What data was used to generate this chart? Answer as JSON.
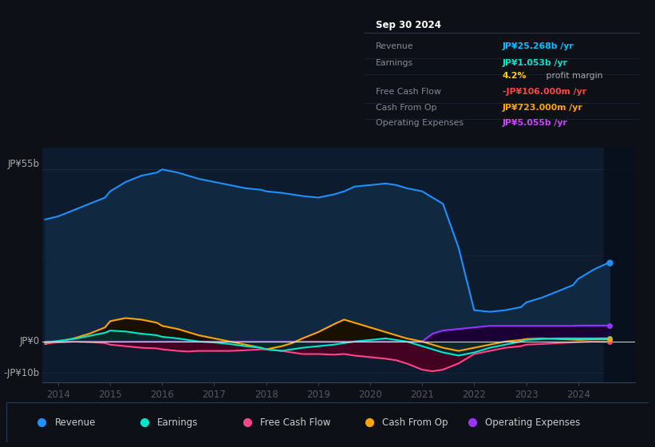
{
  "bg_color": "#0d1117",
  "chart_bg": "#0d1b2e",
  "title": "Sep 30 2024",
  "ylabel_top": "JP¥55b",
  "ylabel_zero": "JP¥0",
  "ylabel_neg": "-JP¥10b",
  "ylim": [
    -13,
    62
  ],
  "xlim": [
    2013.7,
    2025.1
  ],
  "xticks": [
    2014,
    2015,
    2016,
    2017,
    2018,
    2019,
    2020,
    2021,
    2022,
    2023,
    2024
  ],
  "info_box": {
    "title": "Sep 30 2024",
    "rows": [
      {
        "label": "Revenue",
        "value": "JP¥25.268b /yr",
        "color": "#00bfff"
      },
      {
        "label": "Earnings",
        "value": "JP¥1.053b /yr",
        "color": "#00e5cc"
      },
      {
        "label": "",
        "value": "4.2% profit margin",
        "color": "#aaaaaa"
      },
      {
        "label": "Free Cash Flow",
        "value": "-JP¥106.000m /yr",
        "color": "#ff4444"
      },
      {
        "label": "Cash From Op",
        "value": "JP¥723.000m /yr",
        "color": "#ffa500"
      },
      {
        "label": "Operating Expenses",
        "value": "JP¥5.055b /yr",
        "color": "#cc44ff"
      }
    ]
  },
  "revenue": {
    "color": "#1e90ff",
    "fill_color": "#102840",
    "x": [
      2013.75,
      2014.0,
      2014.3,
      2014.6,
      2014.9,
      2015.0,
      2015.3,
      2015.6,
      2015.9,
      2016.0,
      2016.3,
      2016.5,
      2016.7,
      2017.0,
      2017.3,
      2017.6,
      2017.9,
      2018.0,
      2018.3,
      2018.5,
      2018.7,
      2019.0,
      2019.3,
      2019.5,
      2019.7,
      2020.0,
      2020.3,
      2020.5,
      2020.7,
      2021.0,
      2021.2,
      2021.4,
      2021.7,
      2022.0,
      2022.3,
      2022.6,
      2022.9,
      2023.0,
      2023.3,
      2023.6,
      2023.9,
      2024.0,
      2024.3,
      2024.6
    ],
    "y": [
      39,
      40,
      42,
      44,
      46,
      48,
      51,
      53,
      54,
      55,
      54,
      53,
      52,
      51,
      50,
      49,
      48.5,
      48,
      47.5,
      47,
      46.5,
      46,
      47,
      48,
      49.5,
      50,
      50.5,
      50,
      49,
      48,
      46,
      44,
      30,
      10,
      9.5,
      10,
      11,
      12.5,
      14,
      16,
      18,
      20,
      23,
      25.3
    ]
  },
  "earnings": {
    "color": "#00e5cc",
    "fill_color": "#003030",
    "x": [
      2013.75,
      2014.0,
      2014.3,
      2014.6,
      2014.9,
      2015.0,
      2015.3,
      2015.6,
      2015.9,
      2016.0,
      2016.3,
      2016.5,
      2016.7,
      2017.0,
      2017.3,
      2017.6,
      2017.9,
      2018.0,
      2018.3,
      2018.5,
      2018.7,
      2019.0,
      2019.3,
      2019.5,
      2019.7,
      2020.0,
      2020.3,
      2020.5,
      2020.7,
      2021.0,
      2021.2,
      2021.4,
      2021.7,
      2022.0,
      2022.3,
      2022.6,
      2022.9,
      2023.0,
      2023.3,
      2023.6,
      2023.9,
      2024.0,
      2024.3,
      2024.6
    ],
    "y": [
      -0.3,
      0.2,
      0.8,
      1.8,
      2.8,
      3.5,
      3.2,
      2.5,
      2.0,
      1.5,
      1.0,
      0.5,
      0.0,
      -0.3,
      -0.8,
      -1.5,
      -2.0,
      -2.5,
      -3.0,
      -2.5,
      -2.0,
      -1.5,
      -1.0,
      -0.5,
      0.0,
      0.5,
      1.0,
      0.5,
      0.0,
      -1.5,
      -2.5,
      -3.5,
      -4.5,
      -3.5,
      -2.0,
      -1.0,
      0.0,
      0.5,
      0.8,
      1.0,
      1.0,
      1.0,
      1.0,
      1.05
    ]
  },
  "free_cash_flow": {
    "color": "#ff4488",
    "fill_color": "#4a0020",
    "x": [
      2013.75,
      2014.0,
      2014.3,
      2014.6,
      2014.9,
      2015.0,
      2015.3,
      2015.6,
      2015.9,
      2016.0,
      2016.3,
      2016.5,
      2016.7,
      2017.0,
      2017.3,
      2017.6,
      2017.9,
      2018.0,
      2018.3,
      2018.5,
      2018.7,
      2019.0,
      2019.3,
      2019.5,
      2019.7,
      2020.0,
      2020.3,
      2020.5,
      2020.7,
      2021.0,
      2021.2,
      2021.4,
      2021.7,
      2022.0,
      2022.3,
      2022.6,
      2022.9,
      2023.0,
      2023.3,
      2023.6,
      2023.9,
      2024.0,
      2024.3,
      2024.6
    ],
    "y": [
      -0.5,
      -0.3,
      0.0,
      -0.2,
      -0.5,
      -1.0,
      -1.5,
      -2.0,
      -2.2,
      -2.5,
      -3.0,
      -3.2,
      -3.0,
      -3.0,
      -3.0,
      -2.8,
      -2.5,
      -2.5,
      -3.0,
      -3.5,
      -4.0,
      -4.0,
      -4.2,
      -4.0,
      -4.5,
      -5.0,
      -5.5,
      -6.0,
      -7.0,
      -9.0,
      -9.5,
      -9.0,
      -7.0,
      -4.0,
      -3.0,
      -2.0,
      -1.5,
      -1.0,
      -0.8,
      -0.5,
      -0.3,
      -0.2,
      0.0,
      -0.1
    ]
  },
  "cash_from_op": {
    "color": "#ffa500",
    "fill_color": "#1a1000",
    "x": [
      2013.75,
      2014.0,
      2014.3,
      2014.6,
      2014.9,
      2015.0,
      2015.3,
      2015.6,
      2015.9,
      2016.0,
      2016.3,
      2016.5,
      2016.7,
      2017.0,
      2017.3,
      2017.6,
      2017.9,
      2018.0,
      2018.3,
      2018.5,
      2018.7,
      2019.0,
      2019.3,
      2019.5,
      2019.7,
      2020.0,
      2020.3,
      2020.5,
      2020.7,
      2021.0,
      2021.2,
      2021.4,
      2021.7,
      2022.0,
      2022.3,
      2022.6,
      2022.9,
      2023.0,
      2023.3,
      2023.6,
      2023.9,
      2024.0,
      2024.3,
      2024.6
    ],
    "y": [
      -0.8,
      0.0,
      1.0,
      2.5,
      4.5,
      6.5,
      7.5,
      7.0,
      6.0,
      5.0,
      4.0,
      3.0,
      2.0,
      1.0,
      0.0,
      -1.0,
      -2.0,
      -2.5,
      -1.5,
      -0.5,
      1.0,
      3.0,
      5.5,
      7.0,
      6.0,
      4.5,
      3.0,
      2.0,
      1.0,
      0.0,
      -1.0,
      -2.0,
      -3.0,
      -2.0,
      -1.0,
      0.0,
      0.5,
      0.8,
      1.0,
      0.8,
      0.6,
      0.5,
      0.7,
      0.7
    ]
  },
  "operating_expenses": {
    "color": "#9933ff",
    "fill_color": "#1a0035",
    "x": [
      2013.75,
      2014.0,
      2014.3,
      2014.6,
      2014.9,
      2015.0,
      2015.3,
      2015.6,
      2015.9,
      2016.0,
      2016.3,
      2016.5,
      2016.7,
      2017.0,
      2017.3,
      2017.6,
      2017.9,
      2018.0,
      2018.3,
      2018.5,
      2018.7,
      2019.0,
      2019.3,
      2019.5,
      2019.7,
      2020.0,
      2020.3,
      2020.5,
      2020.7,
      2021.0,
      2021.2,
      2021.4,
      2021.7,
      2022.0,
      2022.3,
      2022.6,
      2022.9,
      2023.0,
      2023.3,
      2023.6,
      2023.9,
      2024.0,
      2024.3,
      2024.6
    ],
    "y": [
      0.0,
      0.0,
      0.0,
      0.0,
      0.0,
      0.0,
      0.0,
      0.0,
      0.0,
      0.0,
      0.0,
      0.0,
      0.0,
      0.0,
      0.0,
      0.0,
      0.0,
      0.0,
      0.0,
      0.0,
      0.0,
      0.0,
      0.0,
      0.0,
      0.0,
      0.0,
      0.0,
      0.0,
      0.0,
      0.0,
      2.5,
      3.5,
      4.0,
      4.5,
      5.0,
      5.0,
      5.0,
      5.0,
      5.0,
      5.0,
      5.0,
      5.1,
      5.1,
      5.1
    ]
  },
  "legend_items": [
    {
      "label": "Revenue",
      "color": "#1e90ff"
    },
    {
      "label": "Earnings",
      "color": "#00e5cc"
    },
    {
      "label": "Free Cash Flow",
      "color": "#ff4488"
    },
    {
      "label": "Cash From Op",
      "color": "#ffa500"
    },
    {
      "label": "Operating Expenses",
      "color": "#9933ff"
    }
  ]
}
